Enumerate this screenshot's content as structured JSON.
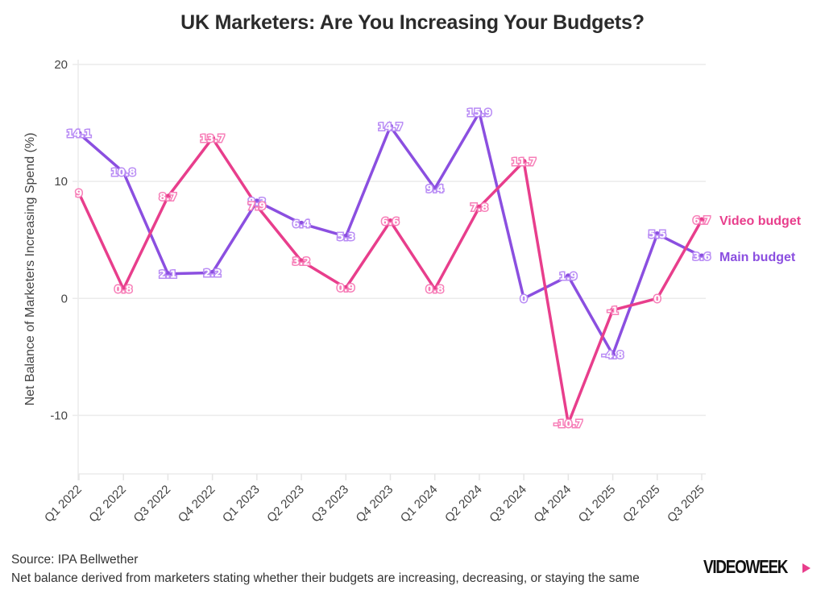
{
  "chart_data": {
    "type": "line",
    "title": "UK Marketers: Are You Increasing Your Budgets?",
    "xlabel": "",
    "ylabel": "Net Balance of Marketers Increasing Spend (%)",
    "ylim": [
      -15,
      20
    ],
    "yticks": [
      -10,
      0,
      10,
      20
    ],
    "grid": true,
    "legend_position": "right (inline labels at line ends)",
    "categories": [
      "Q1 2022",
      "Q2 2022",
      "Q3 2022",
      "Q4 2022",
      "Q1 2023",
      "Q2 2023",
      "Q3 2023",
      "Q4 2023",
      "Q1 2024",
      "Q2 2024",
      "Q3 2024",
      "Q4 2024",
      "Q1 2025",
      "Q2 2025",
      "Q3 2025"
    ],
    "series": [
      {
        "name": "Video budget",
        "color": "#e83e8c",
        "label_color": "#f77fb8",
        "values": [
          9,
          0.8,
          8.7,
          13.7,
          7.9,
          3.2,
          0.9,
          6.6,
          0.8,
          7.8,
          11.7,
          -10.7,
          -1,
          0,
          6.7
        ]
      },
      {
        "name": "Main budget",
        "color": "#8b4fe0",
        "label_color": "#b98cf5",
        "values": [
          14.1,
          10.8,
          2.1,
          2.2,
          8.3,
          6.4,
          5.3,
          14.7,
          9.4,
          15.9,
          0,
          1.9,
          -4.8,
          5.5,
          3.6
        ]
      }
    ]
  },
  "footer": {
    "source": "Source: IPA Bellwether",
    "note": "Net balance derived from marketers stating whether their budgets are increasing, decreasing, or staying the same"
  },
  "brand": {
    "logo_text": "VIDEOWEEK",
    "accent": "#e83e8c"
  }
}
